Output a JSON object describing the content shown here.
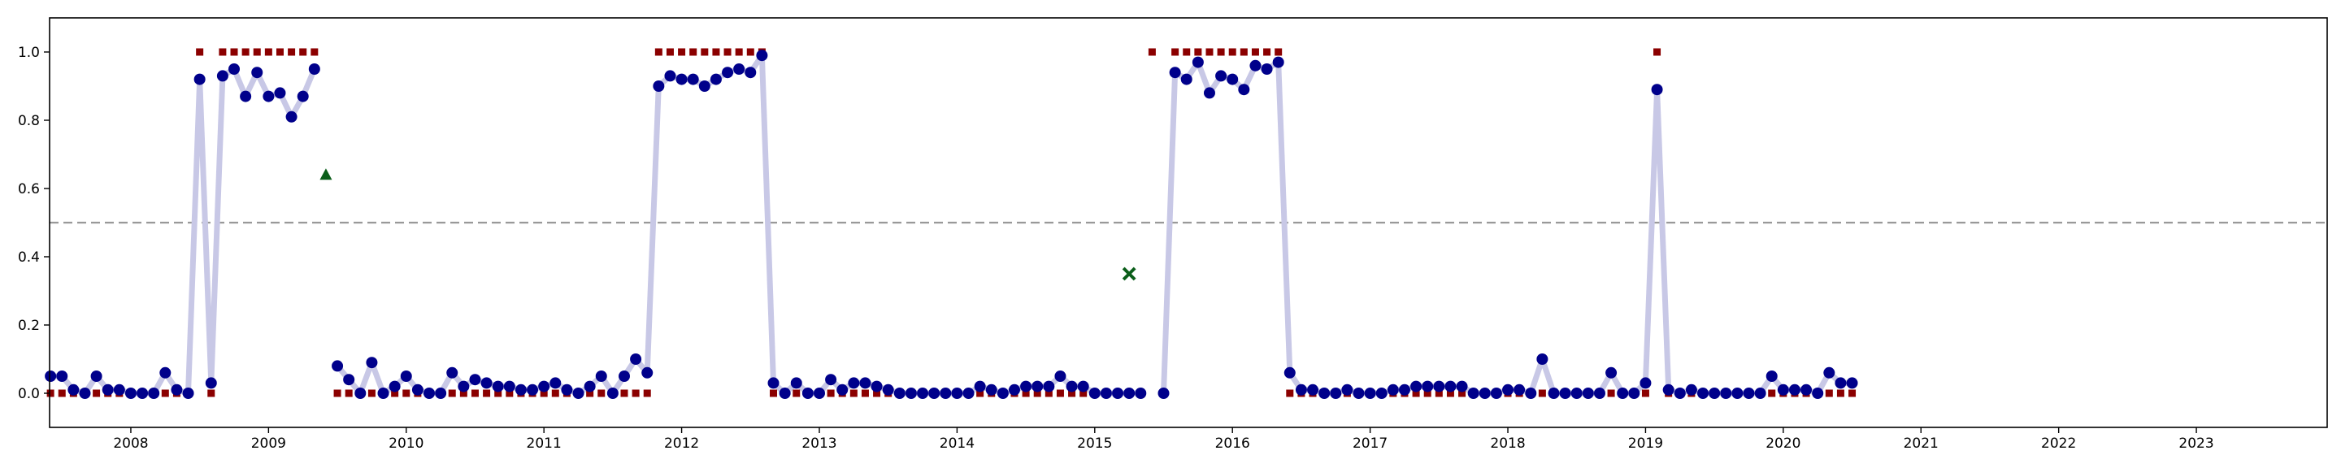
{
  "chart_data": {
    "type": "line",
    "title": "",
    "xlabel": "",
    "ylabel": "",
    "xlim": [
      2007.41,
      2023.95
    ],
    "ylim": [
      -0.1,
      1.1
    ],
    "grid": false,
    "threshold": 0.5,
    "x_ticks": [
      "2008",
      "2009",
      "2010",
      "2011",
      "2012",
      "2013",
      "2014",
      "2015",
      "2016",
      "2017",
      "2018",
      "2019",
      "2020",
      "2021",
      "2022",
      "2023"
    ],
    "y_ticks": [
      "0.0",
      "0.2",
      "0.4",
      "0.6",
      "0.8",
      "1.0"
    ],
    "start": "2007-06",
    "series": [
      {
        "marker": "circle",
        "color": "#00008b",
        "line_color": "#c8c8e6",
        "values": [
          0.05,
          0.05,
          0.01,
          0.0,
          0.05,
          0.01,
          0.01,
          0.0,
          0.0,
          0.0,
          0.06,
          0.01,
          0.0,
          0.92,
          0.03,
          0.93,
          0.95,
          0.87,
          0.94,
          0.87,
          0.88,
          0.81,
          0.87,
          0.95,
          null,
          0.08,
          0.04,
          0.0,
          0.09,
          0.0,
          0.02,
          0.05,
          0.01,
          0.0,
          0.0,
          0.06,
          0.02,
          0.04,
          0.03,
          0.02,
          0.02,
          0.01,
          0.01,
          0.02,
          0.03,
          0.01,
          0.0,
          0.02,
          0.05,
          0.0,
          0.05,
          0.1,
          0.06,
          0.9,
          0.93,
          0.92,
          0.92,
          0.9,
          0.92,
          0.94,
          0.95,
          0.94,
          0.99,
          0.03,
          0.0,
          0.03,
          0.0,
          0.0,
          0.04,
          0.01,
          0.03,
          0.03,
          0.02,
          0.01,
          0.0,
          0.0,
          0.0,
          0.0,
          0.0,
          0.0,
          0.0,
          0.02,
          0.01,
          0.0,
          0.01,
          0.02,
          0.02,
          0.02,
          0.05,
          0.02,
          0.02,
          0.0,
          0.0,
          0.0,
          0.0,
          0.0,
          null,
          0.0,
          0.94,
          0.92,
          0.97,
          0.88,
          0.93,
          0.92,
          0.89,
          0.96,
          0.95,
          0.97,
          0.06,
          0.01,
          0.01,
          0.0,
          0.0,
          0.01,
          0.0,
          0.0,
          0.0,
          0.01,
          0.01,
          0.02,
          0.02,
          0.02,
          0.02,
          0.02,
          0.0,
          0.0,
          0.0,
          0.01,
          0.01,
          0.0,
          0.1,
          0.0,
          0.0,
          0.0,
          0.0,
          0.0,
          0.06,
          0.0,
          0.0,
          0.03,
          0.89,
          0.01,
          0.0,
          0.01,
          0.0,
          0.0,
          0.0,
          0.0,
          0.0,
          0.0,
          0.05,
          0.01,
          0.01,
          0.01,
          0.0,
          0.06,
          0.03,
          0.03
        ]
      },
      {
        "marker": "square",
        "color": "#8b0000",
        "values": [
          0,
          0,
          0,
          0,
          0,
          0,
          0,
          0,
          0,
          0,
          0,
          0,
          0,
          1,
          0,
          1,
          1,
          1,
          1,
          1,
          1,
          1,
          1,
          1,
          null,
          0,
          0,
          0,
          0,
          0,
          0,
          0,
          0,
          0,
          0,
          0,
          0,
          0,
          0,
          0,
          0,
          0,
          0,
          0,
          0,
          0,
          0,
          0,
          0,
          0,
          0,
          0,
          0,
          1,
          1,
          1,
          1,
          1,
          1,
          1,
          1,
          1,
          1,
          0,
          0,
          0,
          0,
          0,
          0,
          0,
          0,
          0,
          0,
          0,
          0,
          0,
          0,
          0,
          0,
          0,
          0,
          0,
          0,
          0,
          0,
          0,
          0,
          0,
          0,
          0,
          0,
          0,
          0,
          0,
          0,
          0,
          1,
          0,
          1,
          1,
          1,
          1,
          1,
          1,
          1,
          1,
          1,
          1,
          0,
          0,
          0,
          0,
          0,
          0,
          0,
          0,
          0,
          0,
          0,
          0,
          0,
          0,
          0,
          0,
          0,
          0,
          0,
          0,
          0,
          0,
          0,
          0,
          0,
          0,
          0,
          0,
          0,
          0,
          0,
          0,
          1,
          0,
          0,
          0,
          0,
          0,
          0,
          0,
          0,
          0,
          0,
          0,
          0,
          0,
          0,
          0,
          0,
          0
        ]
      }
    ],
    "special_points": [
      {
        "date": "2009-06",
        "y": 0.64,
        "marker": "triangle",
        "color": "#0b5e1a"
      },
      {
        "date": "2015-04",
        "y": 0.35,
        "marker": "x",
        "color": "#0b5e1a"
      }
    ]
  }
}
